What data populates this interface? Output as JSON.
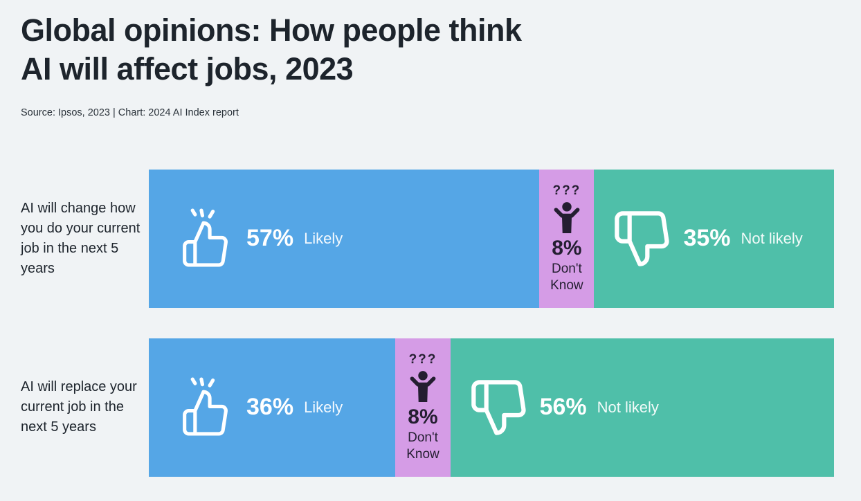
{
  "page": {
    "title_line1": "Global opinions: How people think",
    "title_line2": "AI will affect jobs, 2023",
    "source": "Source: Ipsos, 2023 | Chart: 2024 AI Index report"
  },
  "colors": {
    "likely": "#55a6e6",
    "dont_know": "#d59ce6",
    "not_likely": "#4fbfa9",
    "background": "#f0f3f5",
    "dark_text": "#1d242c",
    "segment_dark_text": "#241e31",
    "white": "#ffffff"
  },
  "icons": {
    "question_marks": "???",
    "thumbs_up": "thumbs-up-outline",
    "thumbs_down": "thumbs-down-outline",
    "confused_person": "person-shrugging-silhouette"
  },
  "chart_data": {
    "type": "bar",
    "orientation": "horizontal",
    "stacked": true,
    "title": "Global opinions: How people think AI will affect jobs, 2023",
    "source": "Source: Ipsos, 2023 | Chart: 2024 AI Index report",
    "categories": [
      "AI will change how you do your current job in the next 5 years",
      "AI will replace your current job in the next 5 years"
    ],
    "series": [
      {
        "name": "Likely",
        "values": [
          57,
          36
        ],
        "color": "#55a6e6"
      },
      {
        "name": "Don't Know",
        "values": [
          8,
          8
        ],
        "color": "#d59ce6"
      },
      {
        "name": "Not likely",
        "values": [
          35,
          56
        ],
        "color": "#4fbfa9"
      }
    ],
    "value_suffix": "%",
    "xlim": [
      0,
      100
    ],
    "grid": false,
    "legend": "labels-inside-segments"
  },
  "rows": [
    {
      "label": "AI will change how you do your current job in the next 5 years",
      "likely": {
        "pct": "57%",
        "label": "Likely",
        "width": 57
      },
      "dont_know": {
        "pct": "8%",
        "line1": "Don't",
        "line2": "Know",
        "width": 8
      },
      "not_likely": {
        "pct": "35%",
        "label": "Not likely",
        "width": 35
      }
    },
    {
      "label": "AI will replace your current job in the next 5 years",
      "likely": {
        "pct": "36%",
        "label": "Likely",
        "width": 36
      },
      "dont_know": {
        "pct": "8%",
        "line1": "Don't",
        "line2": "Know",
        "width": 8
      },
      "not_likely": {
        "pct": "56%",
        "label": "Not likely",
        "width": 56
      }
    }
  ]
}
